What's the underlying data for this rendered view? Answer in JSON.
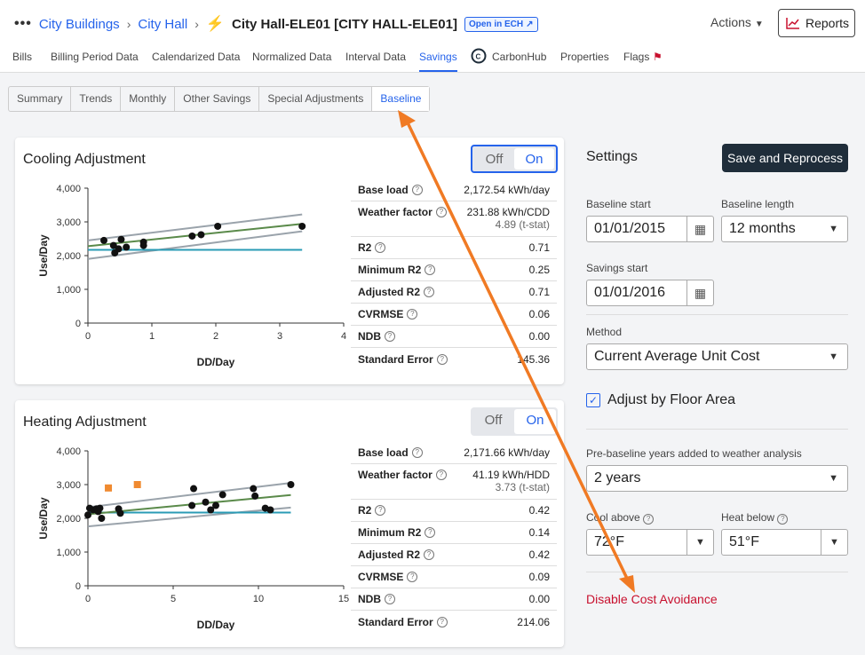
{
  "breadcrumb": {
    "more": "•••",
    "items": [
      "City Buildings",
      "City Hall"
    ],
    "title": "City Hall-ELE01 [CITY HALL-ELE01]",
    "ech": "Open in ECH"
  },
  "header": {
    "actions": "Actions",
    "reports": "Reports"
  },
  "nav": [
    "Bills",
    "Billing Period Data",
    "Calendarized Data",
    "Normalized Data",
    "Interval Data",
    "Savings",
    "CarbonHub",
    "Properties",
    "Flags"
  ],
  "subtabs": [
    "Summary",
    "Trends",
    "Monthly",
    "Other Savings",
    "Special Adjustments",
    "Baseline"
  ],
  "cooling": {
    "title": "Cooling Adjustment",
    "off": "Off",
    "on": "On",
    "stats": [
      {
        "k": "Base load",
        "v": "2,172.54 kWh/day"
      },
      {
        "k": "Weather factor",
        "v": "231.88 kWh/CDD",
        "v2": "4.89 (t-stat)"
      },
      {
        "k": "R2",
        "v": "0.71"
      },
      {
        "k": "Minimum R2",
        "v": "0.25"
      },
      {
        "k": "Adjusted R2",
        "v": "0.71"
      },
      {
        "k": "CVRMSE",
        "v": "0.06"
      },
      {
        "k": "NDB",
        "v": "0.00"
      },
      {
        "k": "Standard Error",
        "v": "145.36"
      }
    ]
  },
  "heating": {
    "title": "Heating Adjustment",
    "off": "Off",
    "on": "On",
    "stats": [
      {
        "k": "Base load",
        "v": "2,171.66 kWh/day"
      },
      {
        "k": "Weather factor",
        "v": "41.19 kWh/HDD",
        "v2": "3.73 (t-stat)"
      },
      {
        "k": "R2",
        "v": "0.42"
      },
      {
        "k": "Minimum R2",
        "v": "0.14"
      },
      {
        "k": "Adjusted R2",
        "v": "0.42"
      },
      {
        "k": "CVRMSE",
        "v": "0.09"
      },
      {
        "k": "NDB",
        "v": "0.00"
      },
      {
        "k": "Standard Error",
        "v": "214.06"
      }
    ]
  },
  "settings": {
    "title": "Settings",
    "save": "Save and Reprocess",
    "baseline_start_label": "Baseline start",
    "baseline_start": "01/01/2015",
    "baseline_length_label": "Baseline length",
    "baseline_length": "12 months",
    "savings_start_label": "Savings start",
    "savings_start": "01/01/2016",
    "method_label": "Method",
    "method": "Current Average Unit Cost",
    "floor_area": "Adjust by Floor Area",
    "pre_years_label": "Pre-baseline years added to weather analysis",
    "pre_years": "2 years",
    "cool_label": "Cool above",
    "cool": "72°F",
    "heat_label": "Heat below",
    "heat": "51°F",
    "disable": "Disable Cost Avoidance"
  },
  "chart_data": [
    {
      "type": "scatter",
      "title": "Cooling Adjustment",
      "xlabel": "DD/Day",
      "ylabel": "Use/Day",
      "xlim": [
        0,
        4
      ],
      "ylim": [
        0,
        4000
      ],
      "xticks": [
        0,
        1,
        2,
        3,
        4
      ],
      "yticks": [
        "0",
        "1,000",
        "2,000",
        "3,000",
        "4,000"
      ],
      "points": [
        [
          0.25,
          2450
        ],
        [
          0.4,
          2300
        ],
        [
          0.42,
          2080
        ],
        [
          0.48,
          2200
        ],
        [
          0.52,
          2480
        ],
        [
          0.6,
          2250
        ],
        [
          0.87,
          2400
        ],
        [
          0.87,
          2300
        ],
        [
          1.63,
          2580
        ],
        [
          1.77,
          2620
        ],
        [
          2.03,
          2870
        ],
        [
          3.35,
          2870
        ]
      ],
      "base_line": 2172.54,
      "fit": [
        [
          0,
          2280
        ],
        [
          3.35,
          2940
        ]
      ],
      "upper": [
        [
          0,
          2450
        ],
        [
          3.35,
          3220
        ]
      ],
      "lower": [
        [
          0,
          1900
        ],
        [
          3.35,
          2720
        ]
      ]
    },
    {
      "type": "scatter",
      "title": "Heating Adjustment",
      "xlabel": "DD/Day",
      "ylabel": "Use/Day",
      "xlim": [
        0,
        15
      ],
      "ylim": [
        0,
        4000
      ],
      "xticks": [
        0,
        5,
        10,
        15
      ],
      "yticks": [
        "0",
        "1,000",
        "2,000",
        "3,000",
        "4,000"
      ],
      "points": [
        [
          0,
          2100
        ],
        [
          0.1,
          2300
        ],
        [
          0.3,
          2250
        ],
        [
          0.5,
          2280
        ],
        [
          0.6,
          2200
        ],
        [
          0.7,
          2300
        ],
        [
          0.8,
          2000
        ],
        [
          1.8,
          2280
        ],
        [
          1.9,
          2150
        ],
        [
          6.1,
          2380
        ],
        [
          6.2,
          2880
        ],
        [
          6.9,
          2480
        ],
        [
          7.2,
          2250
        ],
        [
          7.5,
          2380
        ],
        [
          7.9,
          2700
        ],
        [
          9.7,
          2880
        ],
        [
          9.8,
          2660
        ],
        [
          10.4,
          2300
        ],
        [
          10.7,
          2250
        ],
        [
          11.9,
          3000
        ]
      ],
      "outliers": [
        [
          1.2,
          2900
        ],
        [
          2.9,
          3000
        ]
      ],
      "base_line": 2171.66,
      "fit": [
        [
          0,
          2120
        ],
        [
          11.9,
          2690
        ]
      ],
      "upper": [
        [
          0,
          2330
        ],
        [
          11.9,
          3050
        ]
      ],
      "lower": [
        [
          0,
          1760
        ],
        [
          11.9,
          2320
        ]
      ]
    }
  ]
}
